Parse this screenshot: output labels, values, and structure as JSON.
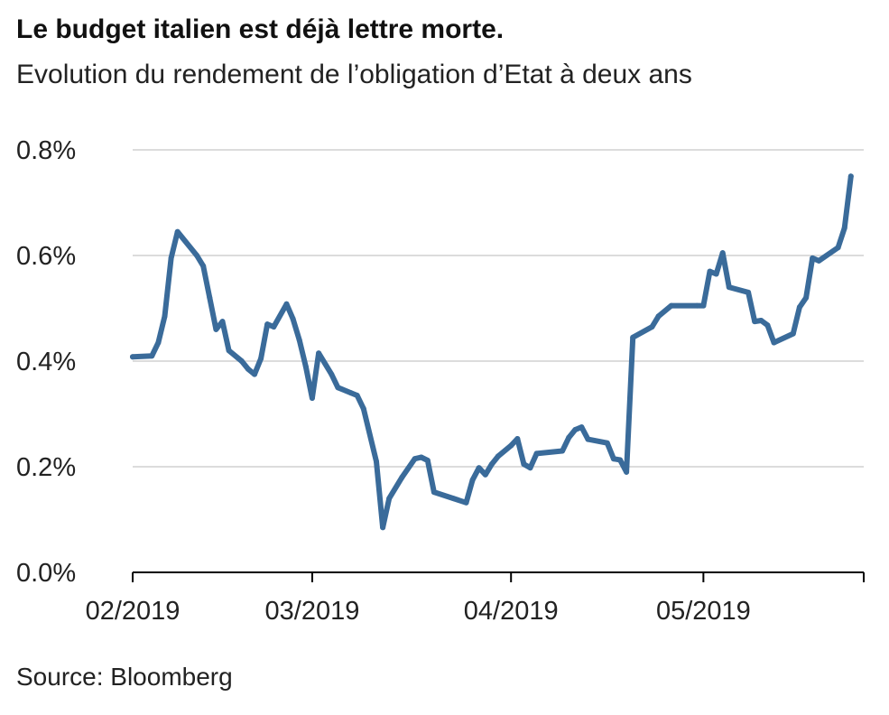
{
  "title": "Le budget italien est déjà lettre morte.",
  "subtitle": "Evolution du rendement de l’obligation d’Etat à deux ans",
  "source": "Source: Bloomberg",
  "colors": {
    "line": "#3a6b9a",
    "grid": "#d0d0d0",
    "axis": "#000000"
  },
  "chart_data": {
    "type": "line",
    "title": "Le budget italien est déjà lettre morte.",
    "subtitle": "Evolution du rendement de l’obligation d’Etat à deux ans",
    "ylabel": "",
    "xlabel": "",
    "ylim": [
      0,
      0.8
    ],
    "xlim": [
      "2019-02-01",
      "2019-05-26"
    ],
    "grid": true,
    "legend": "none",
    "y_ticks": [
      {
        "value": 0.0,
        "label": "0.0%"
      },
      {
        "value": 0.2,
        "label": "0.2%"
      },
      {
        "value": 0.4,
        "label": "0.4%"
      },
      {
        "value": 0.6,
        "label": "0.6%"
      },
      {
        "value": 0.8,
        "label": "0.8%"
      }
    ],
    "x_ticks": [
      {
        "value": "2019-02-01",
        "label": "02/2019"
      },
      {
        "value": "2019-03-01",
        "label": "03/2019"
      },
      {
        "value": "2019-04-01",
        "label": "04/2019"
      },
      {
        "value": "2019-05-01",
        "label": "05/2019"
      }
    ],
    "series": [
      {
        "points": [
          [
            "2019-02-01",
            0.408
          ],
          [
            "2019-02-04",
            0.41
          ],
          [
            "2019-02-05",
            0.435
          ],
          [
            "2019-02-06",
            0.485
          ],
          [
            "2019-02-07",
            0.595
          ],
          [
            "2019-02-08",
            0.645
          ],
          [
            "2019-02-11",
            0.6
          ],
          [
            "2019-02-12",
            0.58
          ],
          [
            "2019-02-13",
            0.52
          ],
          [
            "2019-02-14",
            0.46
          ],
          [
            "2019-02-15",
            0.475
          ],
          [
            "2019-02-16",
            0.42
          ],
          [
            "2019-02-18",
            0.4
          ],
          [
            "2019-02-19",
            0.385
          ],
          [
            "2019-02-20",
            0.375
          ],
          [
            "2019-02-21",
            0.405
          ],
          [
            "2019-02-22",
            0.47
          ],
          [
            "2019-02-23",
            0.465
          ],
          [
            "2019-02-25",
            0.508
          ],
          [
            "2019-02-26",
            0.48
          ],
          [
            "2019-02-27",
            0.44
          ],
          [
            "2019-02-28",
            0.39
          ],
          [
            "2019-03-01",
            0.33
          ],
          [
            "2019-03-02",
            0.415
          ],
          [
            "2019-03-04",
            0.375
          ],
          [
            "2019-03-05",
            0.35
          ],
          [
            "2019-03-07",
            0.34
          ],
          [
            "2019-03-08",
            0.335
          ],
          [
            "2019-03-09",
            0.31
          ],
          [
            "2019-03-11",
            0.21
          ],
          [
            "2019-03-12",
            0.085
          ],
          [
            "2019-03-13",
            0.14
          ],
          [
            "2019-03-15",
            0.18
          ],
          [
            "2019-03-17",
            0.215
          ],
          [
            "2019-03-18",
            0.218
          ],
          [
            "2019-03-19",
            0.212
          ],
          [
            "2019-03-20",
            0.152
          ],
          [
            "2019-03-23",
            0.14
          ],
          [
            "2019-03-25",
            0.132
          ],
          [
            "2019-03-26",
            0.175
          ],
          [
            "2019-03-27",
            0.198
          ],
          [
            "2019-03-28",
            0.185
          ],
          [
            "2019-03-29",
            0.205
          ],
          [
            "2019-03-30",
            0.22
          ],
          [
            "2019-04-01",
            0.24
          ],
          [
            "2019-04-02",
            0.253
          ],
          [
            "2019-04-03",
            0.205
          ],
          [
            "2019-04-04",
            0.198
          ],
          [
            "2019-04-05",
            0.225
          ],
          [
            "2019-04-09",
            0.23
          ],
          [
            "2019-04-10",
            0.255
          ],
          [
            "2019-04-11",
            0.27
          ],
          [
            "2019-04-12",
            0.275
          ],
          [
            "2019-04-13",
            0.252
          ],
          [
            "2019-04-16",
            0.245
          ],
          [
            "2019-04-17",
            0.215
          ],
          [
            "2019-04-18",
            0.213
          ],
          [
            "2019-04-19",
            0.19
          ],
          [
            "2019-04-20",
            0.445
          ],
          [
            "2019-04-23",
            0.465
          ],
          [
            "2019-04-24",
            0.485
          ],
          [
            "2019-04-26",
            0.505
          ],
          [
            "2019-04-30",
            0.505
          ],
          [
            "2019-05-01",
            0.505
          ],
          [
            "2019-05-02",
            0.57
          ],
          [
            "2019-05-03",
            0.565
          ],
          [
            "2019-05-04",
            0.605
          ],
          [
            "2019-05-05",
            0.54
          ],
          [
            "2019-05-08",
            0.53
          ],
          [
            "2019-05-09",
            0.475
          ],
          [
            "2019-05-10",
            0.477
          ],
          [
            "2019-05-11",
            0.468
          ],
          [
            "2019-05-12",
            0.435
          ],
          [
            "2019-05-15",
            0.452
          ],
          [
            "2019-05-16",
            0.502
          ],
          [
            "2019-05-17",
            0.52
          ],
          [
            "2019-05-18",
            0.595
          ],
          [
            "2019-05-19",
            0.59
          ],
          [
            "2019-05-22",
            0.615
          ],
          [
            "2019-05-23",
            0.652
          ],
          [
            "2019-05-24",
            0.75
          ]
        ]
      }
    ]
  }
}
